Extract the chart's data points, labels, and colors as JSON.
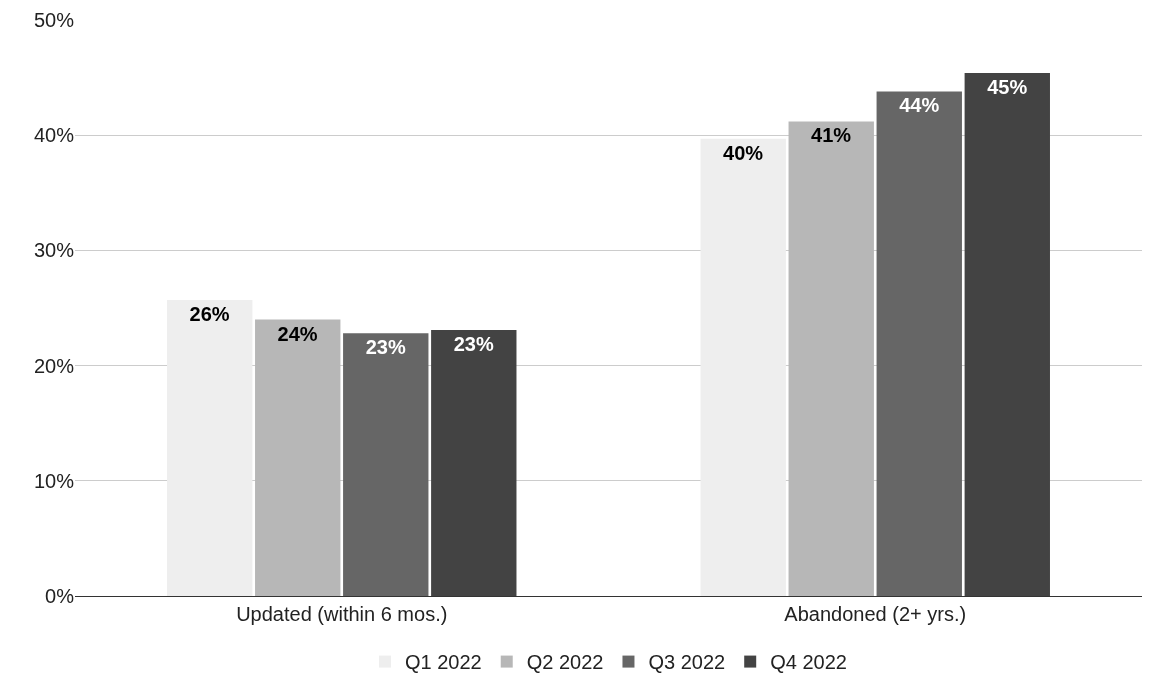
{
  "chart_data": {
    "type": "bar",
    "categories": [
      "Updated (within 6 mos.)",
      "Abandoned (2+ yrs.)"
    ],
    "series": [
      {
        "name": "Q1 2022",
        "color": "#eeeeee",
        "values": [
          25.7,
          39.7
        ],
        "value_labels": [
          "26%",
          "40%"
        ]
      },
      {
        "name": "Q2 2022",
        "color": "#b7b7b7",
        "values": [
          24.0,
          41.2
        ],
        "value_labels": [
          "24%",
          "41%"
        ]
      },
      {
        "name": "Q3 2022",
        "color": "#666666",
        "values": [
          22.8,
          43.8
        ],
        "value_labels": [
          "23%",
          "44%"
        ]
      },
      {
        "name": "Q4 2022",
        "color": "#434343",
        "values": [
          23.1,
          45.4
        ],
        "value_labels": [
          "23%",
          "45%"
        ]
      }
    ],
    "ylim": [
      0,
      50
    ],
    "yticks": [
      {
        "value": 0,
        "label": "0%"
      },
      {
        "value": 10,
        "label": "10%"
      },
      {
        "value": 20,
        "label": "20%"
      },
      {
        "value": 30,
        "label": "30%"
      },
      {
        "value": 40,
        "label": "40%"
      },
      {
        "value": 50,
        "label": "50%"
      }
    ],
    "grid": "y",
    "legend": "bottom"
  }
}
